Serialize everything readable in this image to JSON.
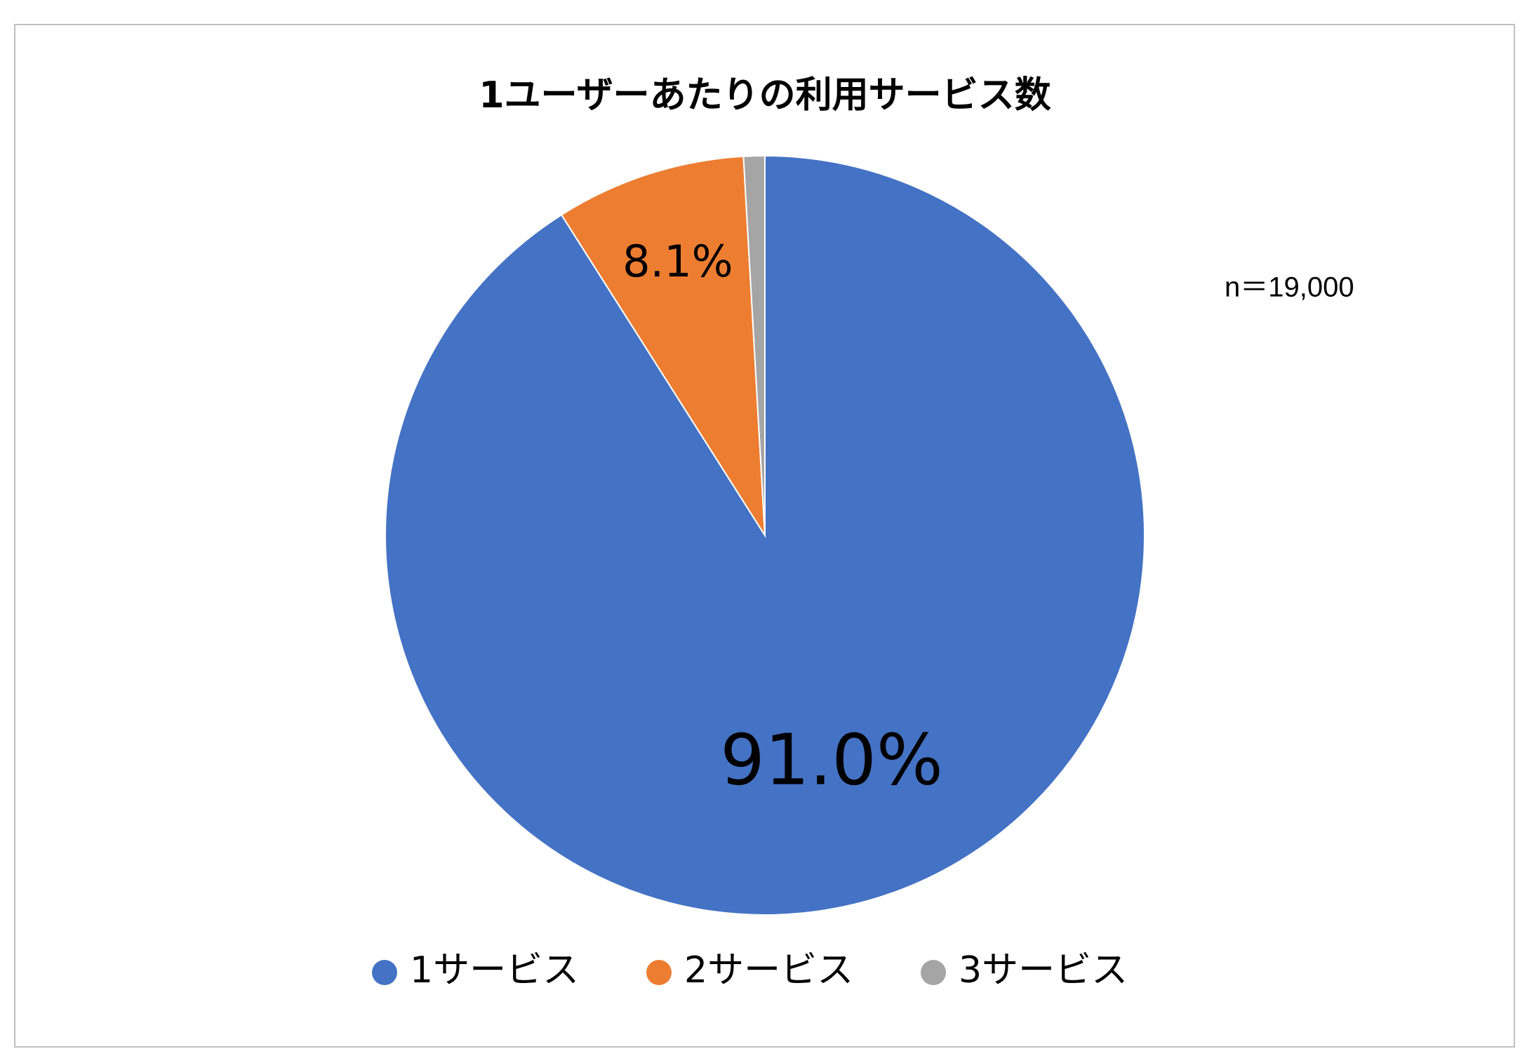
{
  "chart_data": {
    "type": "pie",
    "title": "1ユーザーあたりの利用サービス数",
    "annotation": "n＝19,000",
    "categories": [
      "1サービス",
      "2サービス",
      "3サービス"
    ],
    "series": [
      {
        "colors": [
          "#4472c4",
          "#ed7d31",
          "#a5a5a5"
        ],
        "values": [
          91.0,
          8.1,
          0.9
        ],
        "value_labels": [
          "91.0%",
          "8.1%",
          null
        ]
      }
    ],
    "legend": "bottom"
  }
}
